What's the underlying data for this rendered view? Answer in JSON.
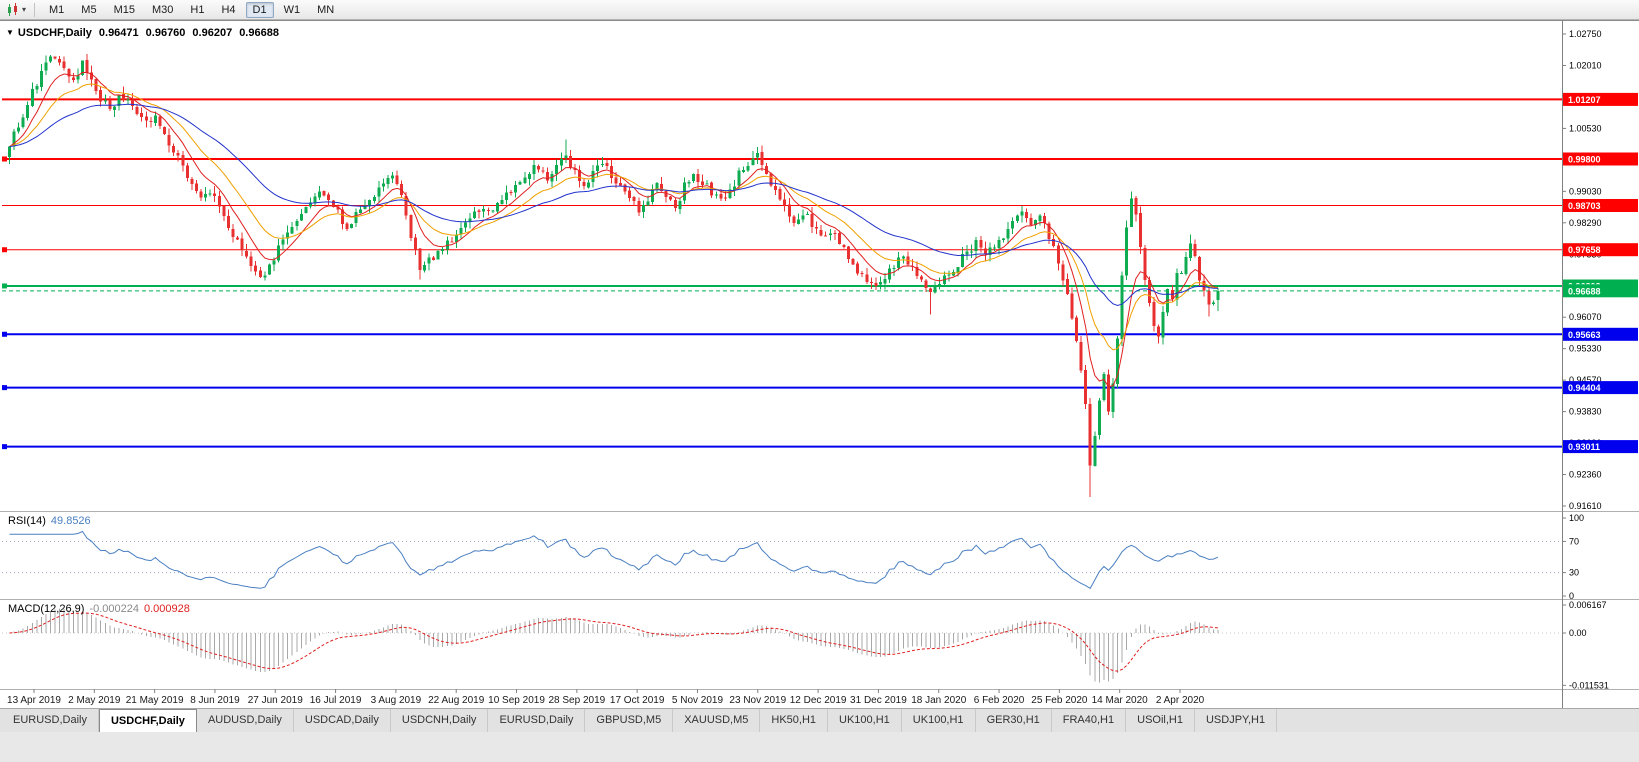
{
  "icons": {
    "triangle_down": "▼",
    "dropdown_arrow": "▾"
  },
  "toolbar": {
    "timeframes": [
      "M1",
      "M5",
      "M15",
      "M30",
      "H1",
      "H4",
      "D1",
      "W1",
      "MN"
    ],
    "active_timeframe": "D1"
  },
  "chart": {
    "title": {
      "symbol": "USDCHF,Daily",
      "open": "0.96471",
      "high": "0.96760",
      "low": "0.96207",
      "close": "0.96688"
    },
    "y_axis_ticks": [
      "1.02750",
      "1.02010",
      "1.01270",
      "1.00530",
      "0.99790",
      "0.99030",
      "0.98290",
      "0.97530",
      "0.96790",
      "0.96070",
      "0.95330",
      "0.94570",
      "0.93830",
      "0.93090",
      "0.92360",
      "0.91610"
    ],
    "x_axis_labels": [
      "13 Apr 2019",
      "2 May 2019",
      "21 May 2019",
      "8 Jun 2019",
      "27 Jun 2019",
      "16 Jul 2019",
      "3 Aug 2019",
      "22 Aug 2019",
      "10 Sep 2019",
      "28 Sep 2019",
      "17 Oct 2019",
      "5 Nov 2019",
      "23 Nov 2019",
      "12 Dec 2019",
      "31 Dec 2019",
      "18 Jan 2020",
      "6 Feb 2020",
      "25 Feb 2020",
      "14 Mar 2020",
      "2 Apr 2020"
    ],
    "h_lines": [
      {
        "price": 1.01207,
        "label": "1.01207",
        "color": "#ff0000",
        "width": 2,
        "handle": false
      },
      {
        "price": 0.998,
        "label": "0.99800",
        "color": "#ff0000",
        "width": 2,
        "handle": true
      },
      {
        "price": 0.98703,
        "label": "0.98703",
        "color": "#ff0000",
        "width": 1,
        "handle": false
      },
      {
        "price": 0.97658,
        "label": "0.97658",
        "color": "#ff0000",
        "width": 1,
        "handle": true
      },
      {
        "price": 0.96803,
        "label": "0.96803",
        "color": "#00b050",
        "width": 2,
        "handle": true
      },
      {
        "price": 0.95663,
        "label": "0.95663",
        "color": "#0000ee",
        "width": 2,
        "handle": true
      },
      {
        "price": 0.94404,
        "label": "0.94404",
        "color": "#0000ee",
        "width": 2,
        "handle": true
      },
      {
        "price": 0.93011,
        "label": "0.93011",
        "color": "#0000ee",
        "width": 2,
        "handle": true
      }
    ],
    "current_price": {
      "value": 0.96688,
      "label": "0.96688",
      "color": "#00b050"
    }
  },
  "chart_data": {
    "type": "candlestick",
    "symbol": "USDCHF",
    "period": "Daily",
    "last_ohlc": {
      "open": 0.96471,
      "high": 0.9676,
      "low": 0.96207,
      "close": 0.96688
    },
    "y_range": {
      "max": 1.0275,
      "min": 0.9161
    },
    "candle_count": 266,
    "colors": {
      "up": "#0fab50",
      "down": "#e83030"
    },
    "support_resistance": [
      1.01207,
      0.998,
      0.98703,
      0.97658,
      0.96803,
      0.95663,
      0.94404,
      0.93011
    ],
    "moving_averages": [
      {
        "name": "ma-fast",
        "period": 8,
        "color": "#e02020"
      },
      {
        "name": "ma-mid",
        "period": 17,
        "color": "#f0a000"
      },
      {
        "name": "ma-slow",
        "period": 40,
        "color": "#2233cc"
      }
    ],
    "close_path_anchors": [
      [
        0,
        1.002
      ],
      [
        2,
        1.006
      ],
      [
        4,
        1.011
      ],
      [
        6,
        1.016
      ],
      [
        8,
        1.0205
      ],
      [
        10,
        1.022
      ],
      [
        12,
        1.0185
      ],
      [
        14,
        1.017
      ],
      [
        16,
        1.0205
      ],
      [
        18,
        1.016
      ],
      [
        20,
        1.012
      ],
      [
        22,
        1.0095
      ],
      [
        24,
        1.0125
      ],
      [
        26,
        1.011
      ],
      [
        28,
        1.0085
      ],
      [
        30,
        1.006
      ],
      [
        32,
        1.0075
      ],
      [
        34,
        1.004
      ],
      [
        36,
        1.0005
      ],
      [
        38,
        0.996
      ],
      [
        40,
        0.9915
      ],
      [
        42,
        0.988
      ],
      [
        44,
        0.99
      ],
      [
        46,
        0.9868
      ],
      [
        48,
        0.982
      ],
      [
        50,
        0.978
      ],
      [
        52,
        0.974
      ],
      [
        54,
        0.9712
      ],
      [
        56,
        0.97
      ],
      [
        58,
        0.9745
      ],
      [
        60,
        0.979
      ],
      [
        62,
        0.983
      ],
      [
        64,
        0.9855
      ],
      [
        66,
        0.988
      ],
      [
        68,
        0.9902
      ],
      [
        70,
        0.9878
      ],
      [
        72,
        0.985
      ],
      [
        74,
        0.9822
      ],
      [
        76,
        0.9845
      ],
      [
        78,
        0.9868
      ],
      [
        80,
        0.9895
      ],
      [
        82,
        0.9918
      ],
      [
        84,
        0.9945
      ],
      [
        86,
        0.989
      ],
      [
        88,
        0.979
      ],
      [
        90,
        0.9722
      ],
      [
        92,
        0.974
      ],
      [
        94,
        0.9758
      ],
      [
        96,
        0.9778
      ],
      [
        98,
        0.98
      ],
      [
        100,
        0.9824
      ],
      [
        102,
        0.9848
      ],
      [
        104,
        0.9872
      ],
      [
        106,
        0.9855
      ],
      [
        108,
        0.9878
      ],
      [
        110,
        0.9902
      ],
      [
        112,
        0.9928
      ],
      [
        114,
        0.9948
      ],
      [
        116,
        0.9966
      ],
      [
        118,
        0.994
      ],
      [
        120,
        0.9958
      ],
      [
        122,
        0.9982
      ],
      [
        124,
        0.9948
      ],
      [
        126,
        0.992
      ],
      [
        128,
        0.9948
      ],
      [
        130,
        0.9968
      ],
      [
        132,
        0.994
      ],
      [
        134,
        0.9912
      ],
      [
        136,
        0.9882
      ],
      [
        138,
        0.986
      ],
      [
        140,
        0.9888
      ],
      [
        142,
        0.9916
      ],
      [
        144,
        0.9888
      ],
      [
        146,
        0.9862
      ],
      [
        148,
        0.9915
      ],
      [
        150,
        0.9942
      ],
      [
        152,
        0.9928
      ],
      [
        154,
        0.99
      ],
      [
        156,
        0.988
      ],
      [
        158,
        0.9908
      ],
      [
        160,
        0.9942
      ],
      [
        162,
        0.9972
      ],
      [
        164,
        0.9985
      ],
      [
        166,
        0.9948
      ],
      [
        168,
        0.9908
      ],
      [
        170,
        0.9868
      ],
      [
        172,
        0.984
      ],
      [
        174,
        0.9854
      ],
      [
        176,
        0.983
      ],
      [
        178,
        0.9802
      ],
      [
        180,
        0.981
      ],
      [
        182,
        0.978
      ],
      [
        184,
        0.975
      ],
      [
        186,
        0.972
      ],
      [
        188,
        0.9692
      ],
      [
        190,
        0.9672
      ],
      [
        192,
        0.97
      ],
      [
        194,
        0.9728
      ],
      [
        196,
        0.9748
      ],
      [
        198,
        0.972
      ],
      [
        200,
        0.9692
      ],
      [
        202,
        0.9662
      ],
      [
        204,
        0.968
      ],
      [
        206,
        0.9708
      ],
      [
        208,
        0.9734
      ],
      [
        210,
        0.9758
      ],
      [
        212,
        0.9784
      ],
      [
        214,
        0.9752
      ],
      [
        216,
        0.9772
      ],
      [
        218,
        0.98
      ],
      [
        220,
        0.9828
      ],
      [
        222,
        0.9848
      ],
      [
        224,
        0.9835
      ],
      [
        226,
        0.9846
      ],
      [
        228,
        0.98
      ],
      [
        230,
        0.9732
      ],
      [
        232,
        0.9652
      ],
      [
        234,
        0.956
      ],
      [
        236,
        0.94
      ],
      [
        237,
        0.9262
      ],
      [
        238,
        0.933
      ],
      [
        239,
        0.9408
      ],
      [
        240,
        0.9478
      ],
      [
        241,
        0.9392
      ],
      [
        242,
        0.945
      ],
      [
        243,
        0.9558
      ],
      [
        244,
        0.97
      ],
      [
        245,
        0.9818
      ],
      [
        246,
        0.9878
      ],
      [
        247,
        0.984
      ],
      [
        248,
        0.978
      ],
      [
        249,
        0.9702
      ],
      [
        250,
        0.964
      ],
      [
        251,
        0.9582
      ],
      [
        252,
        0.956
      ],
      [
        253,
        0.9618
      ],
      [
        254,
        0.9678
      ],
      [
        255,
        0.965
      ],
      [
        256,
        0.97
      ],
      [
        258,
        0.974
      ],
      [
        259,
        0.9778
      ],
      [
        260,
        0.9758
      ],
      [
        261,
        0.97
      ],
      [
        262,
        0.9662
      ],
      [
        263,
        0.9632
      ],
      [
        264,
        0.965
      ],
      [
        265,
        0.96688
      ]
    ],
    "wick_extremes": {
      "9": {
        "high": 1.0226
      },
      "16": {
        "high": 1.0212
      },
      "56": {
        "low": 0.9693
      },
      "90": {
        "low": 0.9696
      },
      "122": {
        "high": 1.0026
      },
      "164": {
        "high": 1.0008
      },
      "202": {
        "low": 0.9613
      },
      "237": {
        "low": 0.9182
      },
      "246": {
        "high": 0.9903
      },
      "259": {
        "high": 0.9802
      },
      "263": {
        "low": 0.9608
      }
    }
  },
  "rsi": {
    "name": "RSI(14)",
    "period": 14,
    "value": "49.8526",
    "axis_labels": [
      "100",
      "70",
      "30",
      "0"
    ],
    "axis_values": [
      100,
      70,
      30,
      0
    ],
    "levels": [
      70,
      30
    ],
    "color": "#4a7fc1"
  },
  "macd": {
    "name": "MACD(12,26,9)",
    "fast": 12,
    "slow": 26,
    "signal": 9,
    "value_main": "-0.000224",
    "value_signal": "0.000928",
    "axis_labels": [
      "0.006167",
      "0.00",
      "-0.011531"
    ],
    "axis_values": [
      0.006167,
      0,
      -0.011531
    ],
    "histogram_color": "#a8a8a8",
    "signal_color": "#e02020"
  },
  "tabs": {
    "items": [
      "EURUSD,Daily",
      "USDCHF,Daily",
      "AUDUSD,Daily",
      "USDCAD,Daily",
      "USDCNH,Daily",
      "EURUSD,Daily",
      "GBPUSD,M5",
      "XAUUSD,M5",
      "HK50,H1",
      "UK100,H1",
      "UK100,H1",
      "GER30,H1",
      "FRA40,H1",
      "USOil,H1",
      "USDJPY,H1"
    ],
    "active_index": 1
  }
}
